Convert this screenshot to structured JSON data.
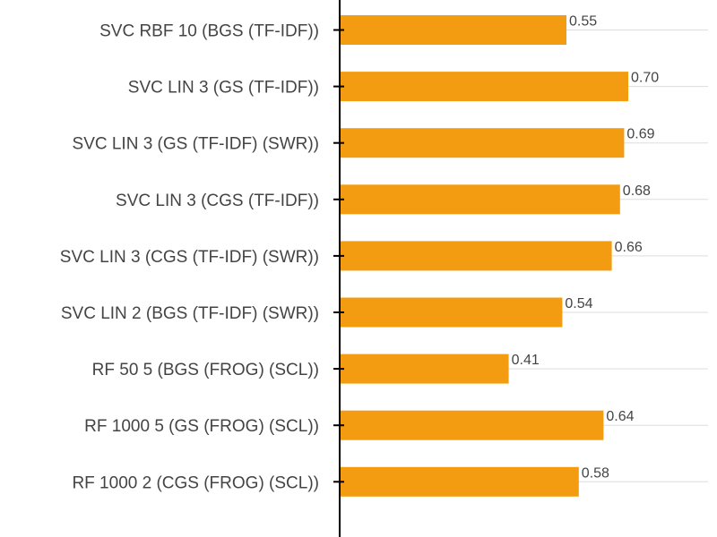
{
  "chart_data": {
    "type": "bar",
    "orientation": "horizontal",
    "title": "",
    "xlabel": "",
    "ylabel": "",
    "xlim": [
      0,
      0.9
    ],
    "grid": true,
    "bar_color": "#f39c12",
    "categories": [
      "SVC RBF 10 (BGS (TF-IDF))",
      "SVC LIN 3 (GS (TF-IDF))",
      "SVC LIN 3 (GS (TF-IDF) (SWR))",
      "SVC LIN 3 (CGS (TF-IDF))",
      "SVC LIN 3 (CGS (TF-IDF) (SWR))",
      "SVC LIN 2 (BGS (TF-IDF) (SWR))",
      "RF 50 5 (BGS (FROG) (SCL))",
      "RF 1000 5 (GS (FROG) (SCL))",
      "RF 1000 2 (CGS (FROG) (SCL))"
    ],
    "values": [
      0.55,
      0.7,
      0.69,
      0.68,
      0.66,
      0.54,
      0.41,
      0.64,
      0.58
    ],
    "value_labels": [
      "0.55",
      "0.70",
      "0.69",
      "0.68",
      "0.66",
      "0.54",
      "0.41",
      "0.64",
      "0.58"
    ]
  }
}
